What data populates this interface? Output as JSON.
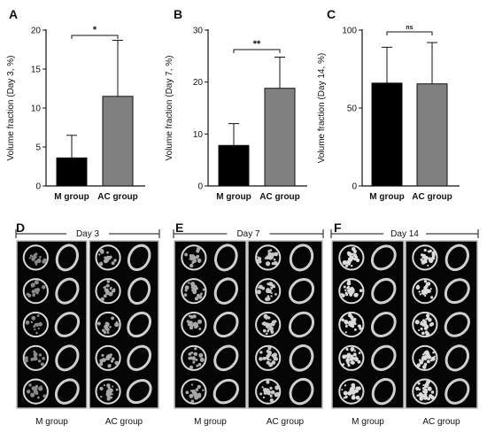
{
  "chart_data": [
    {
      "type": "bar",
      "panel": "A",
      "categories": [
        "M group",
        "AC group"
      ],
      "values": [
        3.6,
        11.5
      ],
      "errors": [
        2.9,
        7.2
      ],
      "ylabel": "Volume fraction (Day 3, %)",
      "ylim": [
        0,
        20
      ],
      "yticks": [
        0,
        5,
        10,
        15,
        20
      ],
      "significance": "*",
      "bar_colors": [
        "#000000",
        "#808080"
      ]
    },
    {
      "type": "bar",
      "panel": "B",
      "categories": [
        "M group",
        "AC group"
      ],
      "values": [
        7.8,
        18.8
      ],
      "errors": [
        4.2,
        6.0
      ],
      "ylabel": "Volume fraction (Day 7, %)",
      "ylim": [
        0,
        30
      ],
      "yticks": [
        0,
        10,
        20,
        30
      ],
      "significance": "**",
      "bar_colors": [
        "#000000",
        "#808080"
      ]
    },
    {
      "type": "bar",
      "panel": "C",
      "categories": [
        "M group",
        "AC group"
      ],
      "values": [
        66,
        65.5
      ],
      "errors": [
        23,
        26.5
      ],
      "ylabel": "Volume fraction (Day 14, %)",
      "ylim": [
        0,
        100
      ],
      "yticks": [
        0,
        50,
        100
      ],
      "significance": "ns",
      "bar_colors": [
        "#000000",
        "#808080"
      ]
    }
  ],
  "image_panels": [
    {
      "panel": "D",
      "title": "Day 3",
      "groups": [
        "M group",
        "AC group"
      ]
    },
    {
      "panel": "E",
      "title": "Day 7",
      "groups": [
        "M group",
        "AC group"
      ]
    },
    {
      "panel": "F",
      "title": "Day 14",
      "groups": [
        "M group",
        "AC group"
      ]
    }
  ]
}
